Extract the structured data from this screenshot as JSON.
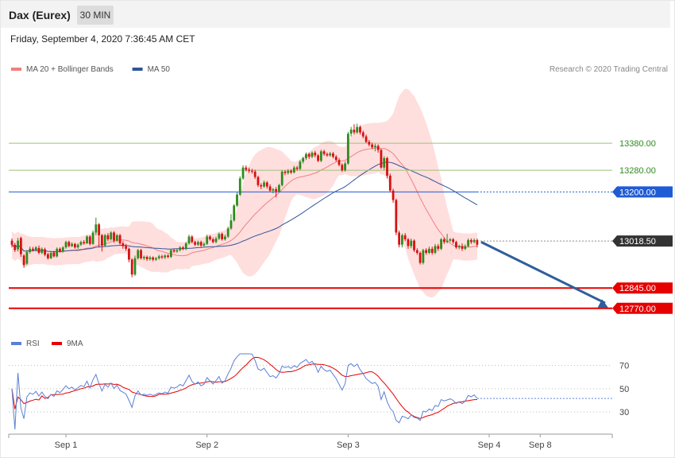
{
  "header": {
    "title": "Dax (Eurex)",
    "interval": "30 MIN",
    "datetime": "Friday, September 4, 2020 7:36:45 AM CET"
  },
  "colors": {
    "bullish": "#2e8b1e",
    "bearish": "#d81010",
    "band_fill": "#ffdede",
    "ma20": "#f08080",
    "ma50": "#2f5597",
    "resistance": "#9ec27a",
    "pivot": "#1f5bd6",
    "support": "#e60000",
    "current": "#333333",
    "rsi": "#5b7fd6",
    "rsi_ma": "#e60000",
    "arrow": "#2f5f9a"
  },
  "chart_data": [
    {
      "type": "candlestick",
      "legend": [
        {
          "label": "MA 20 + Bollinger Bands",
          "color": "#f08080"
        },
        {
          "label": "MA 50",
          "color": "#2f5597"
        }
      ],
      "copyright": "Research © 2020 Trading Central",
      "ylim": [
        12690,
        13630
      ],
      "x_ticks": [
        "Sep 1",
        "Sep 2",
        "Sep 3",
        "Sep 4",
        "Sep 8"
      ],
      "x_tick_index": [
        18,
        65,
        112,
        159,
        176
      ],
      "levels": [
        {
          "label": "13380.00",
          "value": 13380,
          "role": "resistance"
        },
        {
          "label": "13280.00",
          "value": 13280,
          "role": "resistance"
        },
        {
          "label": "13200.00",
          "value": 13200,
          "role": "pivot"
        },
        {
          "label": "13018.50",
          "value": 13018.5,
          "role": "current"
        },
        {
          "label": "12845.00",
          "value": 12845,
          "role": "support"
        },
        {
          "label": "12770.00",
          "value": 12770,
          "role": "support"
        }
      ],
      "forecast_arrow": {
        "from": 13015,
        "to": 12772
      },
      "candles": [
        [
          13020,
          13005,
          13028,
          12995
        ],
        [
          13005,
          12985,
          13012,
          12978
        ],
        [
          12988,
          13020,
          13030,
          12980
        ],
        [
          13030,
          12970,
          13035,
          12960
        ],
        [
          12965,
          12930,
          12970,
          12920
        ],
        [
          12935,
          12978,
          12985,
          12930
        ],
        [
          12978,
          12990,
          12998,
          12972
        ],
        [
          12990,
          12985,
          12997,
          12980
        ],
        [
          12985,
          12995,
          13000,
          12980
        ],
        [
          12993,
          12975,
          13002,
          12970
        ],
        [
          12975,
          12990,
          12995,
          12970
        ],
        [
          12988,
          12968,
          12994,
          12962
        ],
        [
          12970,
          12955,
          12975,
          12950
        ],
        [
          12955,
          12975,
          12980,
          12952
        ],
        [
          12976,
          12962,
          12983,
          12958
        ],
        [
          12962,
          12990,
          12995,
          12958
        ],
        [
          12990,
          12980,
          12995,
          12976
        ],
        [
          12980,
          12995,
          13000,
          12976
        ],
        [
          12995,
          13015,
          13020,
          12990
        ],
        [
          13015,
          13000,
          13020,
          12995
        ],
        [
          13000,
          13008,
          13014,
          12996
        ],
        [
          13008,
          12995,
          13012,
          12990
        ],
        [
          12995,
          13005,
          13010,
          12990
        ],
        [
          13005,
          13015,
          13020,
          13000
        ],
        [
          13015,
          13010,
          13022,
          13005
        ],
        [
          13010,
          13035,
          13040,
          13008
        ],
        [
          13035,
          13008,
          13040,
          13002
        ],
        [
          13008,
          13050,
          13058,
          13004
        ],
        [
          13050,
          13080,
          13105,
          13040
        ],
        [
          13080,
          13040,
          13085,
          12995
        ],
        [
          13040,
          13002,
          13045,
          12980
        ],
        [
          13002,
          13040,
          13045,
          12998
        ],
        [
          13040,
          13025,
          13048,
          13018
        ],
        [
          13025,
          13050,
          13055,
          13020
        ],
        [
          13050,
          13020,
          13055,
          13012
        ],
        [
          13020,
          13040,
          13045,
          13015
        ],
        [
          13040,
          13010,
          13045,
          13005
        ],
        [
          13010,
          13000,
          13018,
          12990
        ],
        [
          13000,
          12990,
          13008,
          12982
        ],
        [
          12990,
          12950,
          12995,
          12940
        ],
        [
          12950,
          12895,
          12955,
          12885
        ],
        [
          12895,
          12955,
          12965,
          12890
        ],
        [
          12955,
          12985,
          12990,
          12950
        ],
        [
          12985,
          12955,
          12990,
          12950
        ],
        [
          12955,
          12960,
          12965,
          12948
        ],
        [
          12960,
          12952,
          12965,
          12945
        ],
        [
          12952,
          12958,
          12964,
          12946
        ],
        [
          12958,
          12950,
          12962,
          12944
        ],
        [
          12950,
          12955,
          12960,
          12945
        ],
        [
          12955,
          12962,
          12968,
          12950
        ],
        [
          12962,
          12958,
          12968,
          12952
        ],
        [
          12958,
          12965,
          12970,
          12952
        ],
        [
          12965,
          12960,
          12970,
          12955
        ],
        [
          12960,
          12985,
          12990,
          12956
        ],
        [
          12985,
          12980,
          12990,
          12975
        ],
        [
          12980,
          12985,
          12990,
          12975
        ],
        [
          12985,
          12995,
          13000,
          12980
        ],
        [
          12995,
          12990,
          13000,
          12985
        ],
        [
          12990,
          13010,
          13015,
          12985
        ],
        [
          13010,
          13035,
          13042,
          13005
        ],
        [
          13035,
          13015,
          13040,
          13010
        ],
        [
          13015,
          13005,
          13020,
          13000
        ],
        [
          13005,
          13015,
          13020,
          13000
        ],
        [
          13015,
          13002,
          13020,
          12996
        ],
        [
          13002,
          13008,
          13014,
          12998
        ],
        [
          13008,
          13035,
          13042,
          13004
        ],
        [
          13035,
          13025,
          13040,
          13020
        ],
        [
          13025,
          13015,
          13032,
          13010
        ],
        [
          13015,
          13028,
          13035,
          13010
        ],
        [
          13028,
          13045,
          13050,
          13022
        ],
        [
          13045,
          13025,
          13050,
          13020
        ],
        [
          13025,
          13035,
          13042,
          13020
        ],
        [
          13035,
          13065,
          13072,
          13030
        ],
        [
          13065,
          13095,
          13118,
          13060
        ],
        [
          13095,
          13150,
          13155,
          13090
        ],
        [
          13150,
          13190,
          13198,
          13145
        ],
        [
          13190,
          13250,
          13258,
          13185
        ],
        [
          13250,
          13290,
          13298,
          13245
        ],
        [
          13290,
          13282,
          13298,
          13275
        ],
        [
          13282,
          13278,
          13290,
          13270
        ],
        [
          13278,
          13275,
          13285,
          13268
        ],
        [
          13275,
          13255,
          13282,
          13248
        ],
        [
          13255,
          13225,
          13260,
          13218
        ],
        [
          13225,
          13220,
          13232,
          13210
        ],
        [
          13220,
          13235,
          13242,
          13215
        ],
        [
          13235,
          13220,
          13240,
          13212
        ],
        [
          13220,
          13205,
          13228,
          13200
        ],
        [
          13205,
          13210,
          13215,
          13195
        ],
        [
          13210,
          13202,
          13218,
          13180
        ],
        [
          13202,
          13225,
          13230,
          13198
        ],
        [
          13225,
          13275,
          13280,
          13220
        ],
        [
          13275,
          13270,
          13280,
          13262
        ],
        [
          13270,
          13278,
          13284,
          13264
        ],
        [
          13278,
          13272,
          13284,
          13266
        ],
        [
          13272,
          13290,
          13296,
          13268
        ],
        [
          13290,
          13285,
          13296,
          13278
        ],
        [
          13285,
          13312,
          13318,
          13280
        ],
        [
          13312,
          13325,
          13330,
          13305
        ],
        [
          13325,
          13340,
          13346,
          13318
        ],
        [
          13340,
          13330,
          13346,
          13322
        ],
        [
          13330,
          13345,
          13350,
          13325
        ],
        [
          13345,
          13335,
          13352,
          13328
        ],
        [
          13335,
          13315,
          13340,
          13310
        ],
        [
          13315,
          13350,
          13356,
          13310
        ],
        [
          13350,
          13340,
          13356,
          13334
        ],
        [
          13340,
          13335,
          13346,
          13330
        ],
        [
          13335,
          13342,
          13348,
          13330
        ],
        [
          13342,
          13330,
          13348,
          13324
        ],
        [
          13330,
          13318,
          13336,
          13312
        ],
        [
          13318,
          13300,
          13325,
          13295
        ],
        [
          13300,
          13280,
          13306,
          13274
        ],
        [
          13280,
          13305,
          13312,
          13275
        ],
        [
          13305,
          13415,
          13422,
          13300
        ],
        [
          13415,
          13430,
          13440,
          13405
        ],
        [
          13430,
          13420,
          13450,
          13412
        ],
        [
          13420,
          13440,
          13452,
          13415
        ],
        [
          13440,
          13420,
          13446,
          13412
        ],
        [
          13420,
          13405,
          13426,
          13398
        ],
        [
          13405,
          13385,
          13412,
          13380
        ],
        [
          13385,
          13375,
          13392,
          13368
        ],
        [
          13375,
          13365,
          13382,
          13358
        ],
        [
          13365,
          13370,
          13378,
          13350
        ],
        [
          13370,
          13355,
          13376,
          13345
        ],
        [
          13355,
          13290,
          13360,
          13285
        ],
        [
          13290,
          13325,
          13332,
          13282
        ],
        [
          13325,
          13260,
          13330,
          13250
        ],
        [
          13260,
          13205,
          13268,
          13198
        ],
        [
          13205,
          13170,
          13212,
          13160
        ],
        [
          13170,
          13050,
          13175,
          13040
        ],
        [
          13050,
          13005,
          13058,
          12995
        ],
        [
          13005,
          13040,
          13046,
          12995
        ],
        [
          13040,
          13025,
          13048,
          13018
        ],
        [
          13025,
          13000,
          13030,
          12990
        ],
        [
          13000,
          13020,
          13028,
          12992
        ],
        [
          13020,
          12985,
          13025,
          12978
        ],
        [
          12985,
          12975,
          12992,
          12968
        ],
        [
          12975,
          12938,
          12980,
          12932
        ],
        [
          12938,
          12985,
          12990,
          12932
        ],
        [
          12985,
          12975,
          12992,
          12968
        ],
        [
          12975,
          12990,
          12998,
          12970
        ],
        [
          12990,
          12975,
          12998,
          12968
        ],
        [
          12975,
          13000,
          13008,
          12970
        ],
        [
          13000,
          12990,
          13008,
          12982
        ],
        [
          12990,
          13025,
          13030,
          12985
        ],
        [
          13025,
          13015,
          13032,
          13008
        ],
        [
          13015,
          13020,
          13045,
          13010
        ],
        [
          13020,
          13025,
          13030,
          13015
        ],
        [
          13025,
          13015,
          13030,
          13008
        ],
        [
          13015,
          12995,
          13020,
          12990
        ],
        [
          12995,
          13000,
          13005,
          12988
        ],
        [
          13000,
          12990,
          13010,
          12982
        ],
        [
          12990,
          13000,
          13006,
          12985
        ],
        [
          13000,
          13022,
          13028,
          12995
        ],
        [
          13022,
          13015,
          13028,
          13008
        ],
        [
          13015,
          13022,
          13028,
          13010
        ],
        [
          13022,
          13005,
          13028,
          12995
        ]
      ]
    },
    {
      "type": "line",
      "title": "RSI",
      "legend": [
        {
          "label": "RSI",
          "color": "#5b7fd6"
        },
        {
          "label": "9MA",
          "color": "#e60000"
        }
      ],
      "y_ticks": [
        "70",
        "50",
        "30"
      ],
      "ylim": [
        15,
        80
      ]
    }
  ]
}
